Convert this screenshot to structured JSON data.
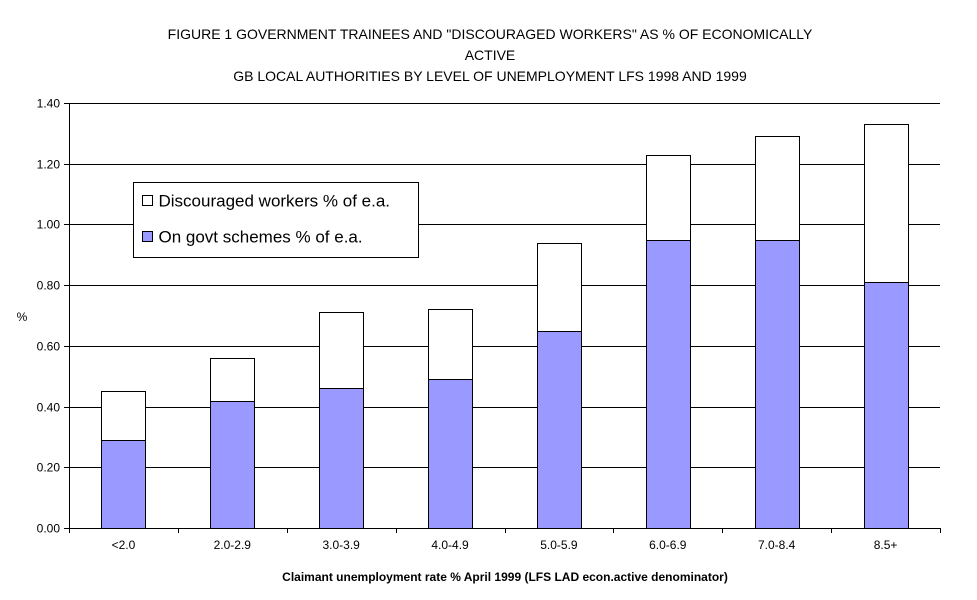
{
  "chart_data": {
    "type": "bar",
    "stacked": true,
    "title_lines": [
      "FIGURE 1  GOVERNMENT TRAINEES AND \"DISCOURAGED WORKERS\" AS % OF ECONOMICALLY",
      "ACTIVE",
      "GB LOCAL AUTHORITIES BY LEVEL OF UNEMPLOYMENT LFS 1998 AND 1999"
    ],
    "xlabel": "Claimant unemployment rate % April 1999 (LFS LAD econ.active denominator)",
    "ylabel": "%",
    "ylim": [
      0,
      1.4
    ],
    "ytick_step": 0.2,
    "ytick_labels": [
      "0.00",
      "0.20",
      "0.40",
      "0.60",
      "0.80",
      "1.00",
      "1.20",
      "1.40"
    ],
    "grid": "horizontal",
    "legend_position": "upper-left",
    "categories": [
      "<2.0",
      "2.0-2.9",
      "3.0-3.9",
      "4.0-4.9",
      "5.0-5.9",
      "6.0-6.9",
      "7.0-8.4",
      "8.5+"
    ],
    "series": [
      {
        "name": "On govt schemes % of e.a.",
        "color": "#9999ff",
        "values": [
          0.29,
          0.42,
          0.46,
          0.49,
          0.65,
          0.95,
          0.95,
          0.81
        ]
      },
      {
        "name": "Discouraged workers % of e.a.",
        "color": "#ffffff",
        "values": [
          0.16,
          0.14,
          0.25,
          0.23,
          0.29,
          0.28,
          0.34,
          0.52
        ]
      }
    ],
    "legend_order": [
      1,
      0
    ]
  }
}
